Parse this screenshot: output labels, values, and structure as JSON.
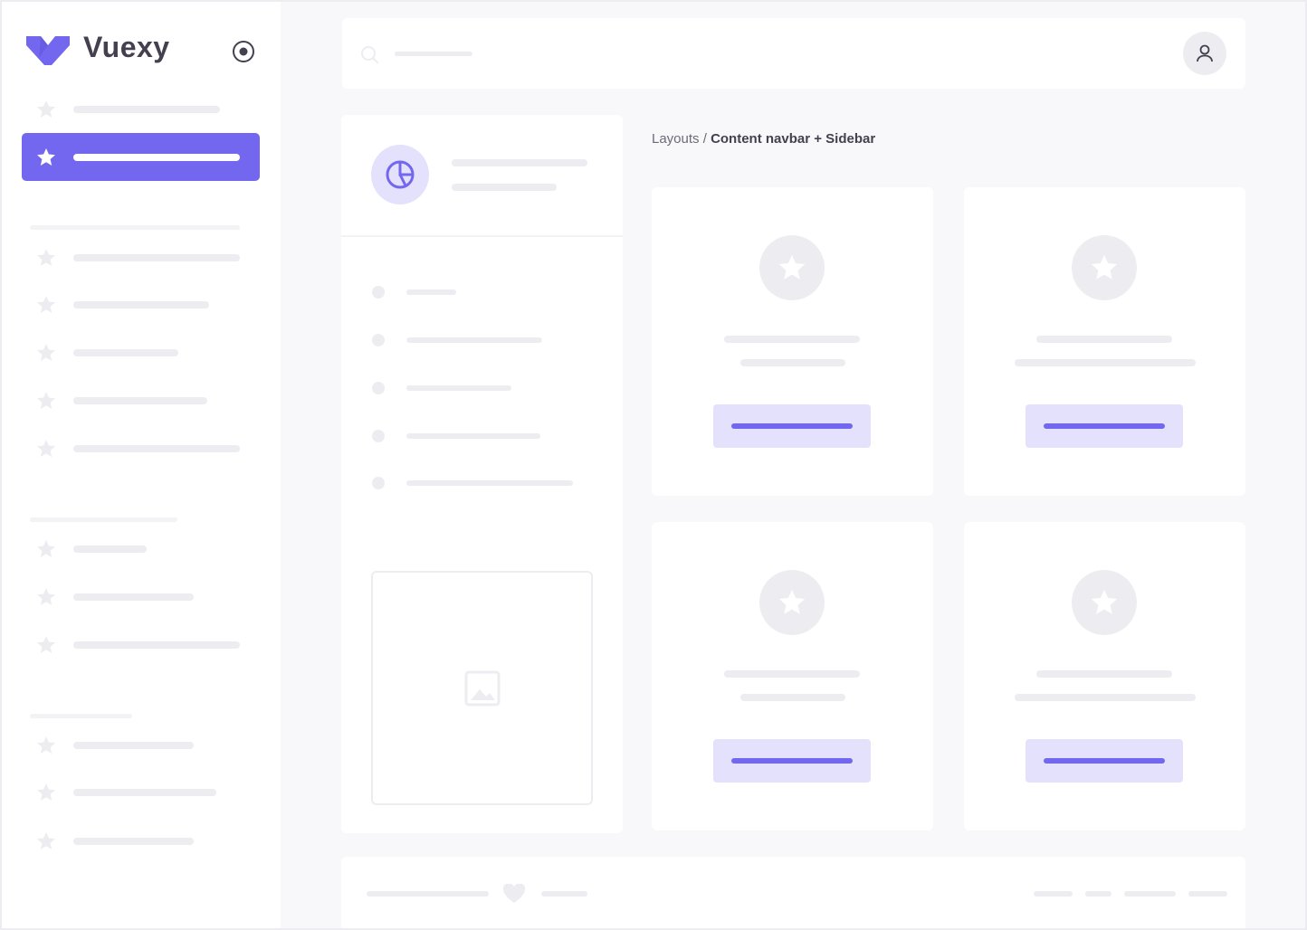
{
  "brand": {
    "name": "Vuexy",
    "color": "#7367F0"
  },
  "breadcrumb": {
    "parent": "Layouts",
    "separator": " / ",
    "current": "Content navbar + Sidebar"
  },
  "icons": {
    "logo": "vuexy-logo",
    "sidebar_toggle": "radio-circle-icon",
    "search": "search-icon",
    "user": "user-icon",
    "nav_item": "star-icon",
    "widget": "pie-chart-icon",
    "image": "image-icon",
    "footer": "heart-icon"
  },
  "colors": {
    "primary": "#7367F0",
    "primary_light": "#E4E1FC",
    "skeleton": "#EDEDF1",
    "background": "#F8F8FA"
  }
}
